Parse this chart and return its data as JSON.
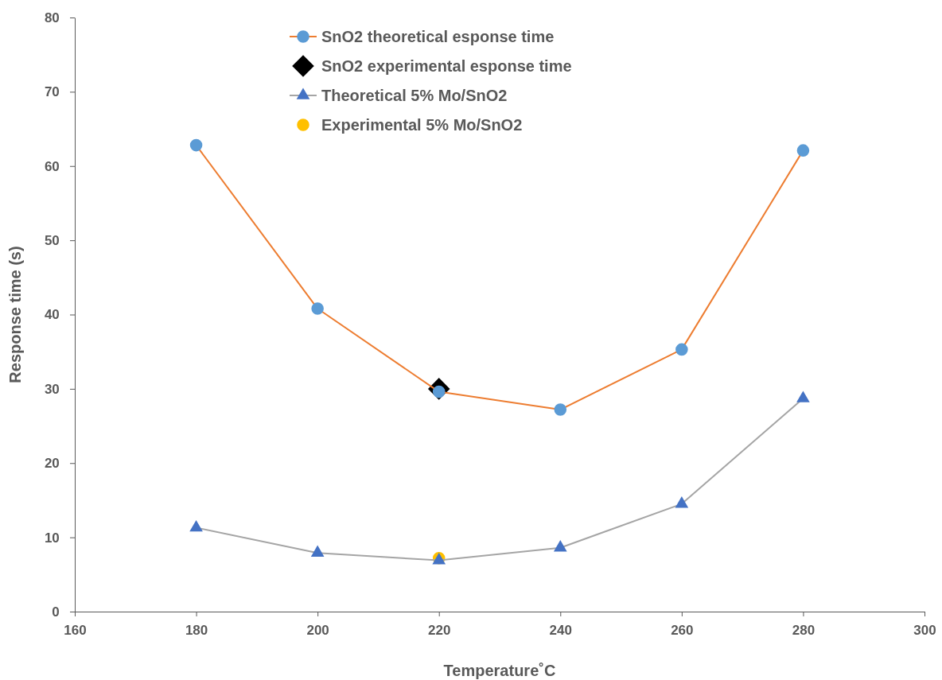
{
  "chart_data": {
    "type": "line",
    "xlabel": "Temperature˚C",
    "ylabel": "Response time (s)",
    "xlim": [
      160,
      300
    ],
    "xticks": [
      160,
      180,
      200,
      220,
      240,
      260,
      280,
      300
    ],
    "ylim": [
      0,
      80
    ],
    "yticks": [
      0,
      10,
      20,
      30,
      40,
      50,
      60,
      70,
      80
    ],
    "grid": false,
    "legend": "top",
    "series": [
      {
        "name": "SnO2  theoretical esponse time",
        "marker": "circle",
        "color": "#ed7d31",
        "colors": [
          "#5b9bd5",
          "#5b9bd5",
          "#5b9bd5",
          "#5b9bd5",
          "#5b9bd5",
          "#5b9bd5"
        ],
        "x": [
          180,
          200,
          220,
          240,
          260,
          280
        ],
        "values": [
          62.8,
          40.8,
          29.6,
          27.2,
          35.3,
          62.1
        ]
      },
      {
        "name": "SnO2 experimental esponse time",
        "type": "scatter",
        "marker": "diamond",
        "color": "#000000",
        "x": [
          220
        ],
        "values": [
          30
        ]
      },
      {
        "name": "Theoretical 5% Mo/SnO2",
        "marker": "triangle",
        "color": "#a5a5a5",
        "colors": [
          "#4472c4",
          "#4472c4",
          "#4472c4",
          "#4472c4",
          "#4472c4",
          "#4472c4"
        ],
        "x": [
          180,
          200,
          220,
          240,
          260,
          280
        ],
        "values": [
          11.3,
          7.9,
          6.9,
          8.6,
          14.5,
          28.7
        ]
      },
      {
        "name": "Experimental 5% Mo/SnO2",
        "type": "scatter",
        "marker": "circle",
        "color": "#ffc000",
        "x": [
          220
        ],
        "values": [
          7.2
        ]
      }
    ]
  }
}
